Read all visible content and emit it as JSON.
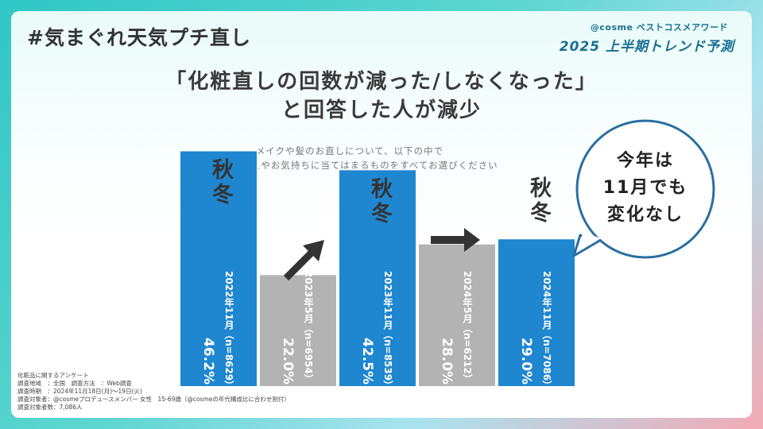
{
  "header": {
    "hashtag": "#気まぐれ天気プチ直し",
    "brand_sub": "@cosme ベストコスメアワード",
    "brand_main": "2025 上半期トレンド予測"
  },
  "title": {
    "line1": "「化粧直しの回数が減った/しなくなった」",
    "line2": "と回答した人が減少"
  },
  "question": {
    "line1": "メイクや髪のお直しについて、以下の中で",
    "line2": "あなたの考えやお気持ちに当てはまるものをすべてお選びください"
  },
  "chart_data": {
    "type": "bar",
    "categories": [
      "2022年11月（n=8629）",
      "2023年5月（n=6954）",
      "2023年11月（n=8539）",
      "2024年5月（n=6212）",
      "2024年11月（n=7086）"
    ],
    "values": [
      46.2,
      22.0,
      42.5,
      28.0,
      29.0
    ],
    "value_labels": [
      "46.2%",
      "22.0%",
      "42.5%",
      "28.0%",
      "29.0%"
    ],
    "season_labels": [
      "秋冬",
      "",
      "秋冬",
      "",
      "秋冬"
    ],
    "colors": [
      "#1f86d0",
      "#b3b3b3",
      "#1f86d0",
      "#b3b3b3",
      "#1f86d0"
    ],
    "title": "",
    "xlabel": "",
    "ylabel": "",
    "ylim": [
      0,
      50
    ]
  },
  "bubble": {
    "line1": "今年は",
    "line2": "11月でも",
    "line3": "変化なし"
  },
  "notes": {
    "line1": "化粧品に関するアンケート",
    "line2": "調査地域　：全国　調査方法　：Web調査",
    "line3": "調査時期　：2024年11月18日(月)～19日(火)",
    "line4": "調査対象者：@cosmeプロデュースメンバー 女性　15-69歳（@cosmeの年代構成比に合わせ割付）",
    "line5": "調査対象者数：7,086人"
  },
  "colors": {
    "bar_autumn": "#1f86d0",
    "bar_spring": "#b3b3b3",
    "accent": "#1a6e93"
  }
}
